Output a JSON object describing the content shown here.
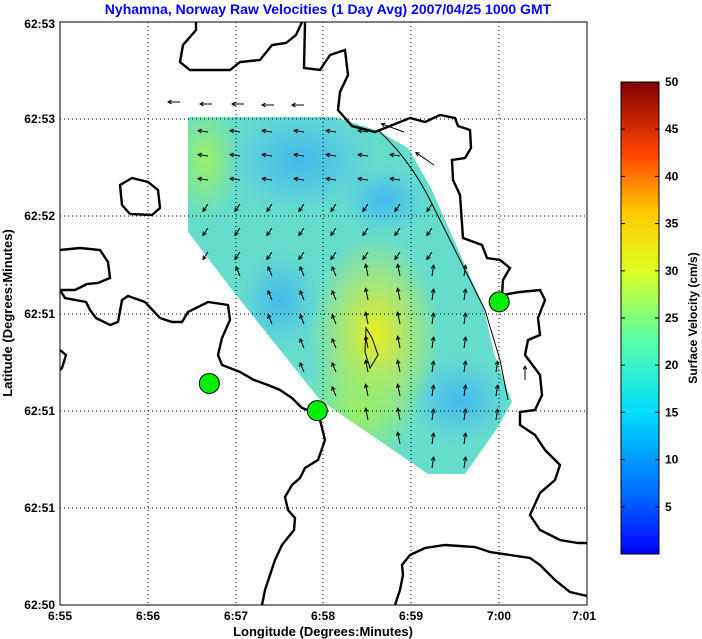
{
  "chart_data": {
    "type": "heatmap",
    "title": "Nyhamna, Norway Raw Velocities (1 Day Avg) 2007/04/25 1000 GMT",
    "xlabel": "Longitude (Degrees:Minutes)",
    "ylabel": "Latitude (Degrees:Minutes)",
    "x_tick_labels": [
      "6:55",
      "6:56",
      "6:57",
      "6:58",
      "6:59",
      "7:00",
      "7:01"
    ],
    "y_tick_labels": [
      "62:50",
      "62:51",
      "62:51",
      "62:51",
      "62:52",
      "62:53",
      "62:53"
    ],
    "grid": true,
    "colorbar": {
      "label": "Surface Velocity (cm/s)",
      "range": [
        0,
        50
      ],
      "tick_labels": [
        "5",
        "10",
        "15",
        "20",
        "25",
        "30",
        "35",
        "40",
        "45",
        "50"
      ],
      "colormap": "jet"
    },
    "stations": [
      {
        "lon_min": 6.7,
        "lat_idx": 2.28,
        "color": "#00ee00"
      },
      {
        "lon_min": 7.93,
        "lat_idx": 2.0,
        "color": "#00ee00"
      },
      {
        "lon_min": 10.0,
        "lat_idx": 3.12,
        "color": "#00ee00"
      }
    ]
  }
}
